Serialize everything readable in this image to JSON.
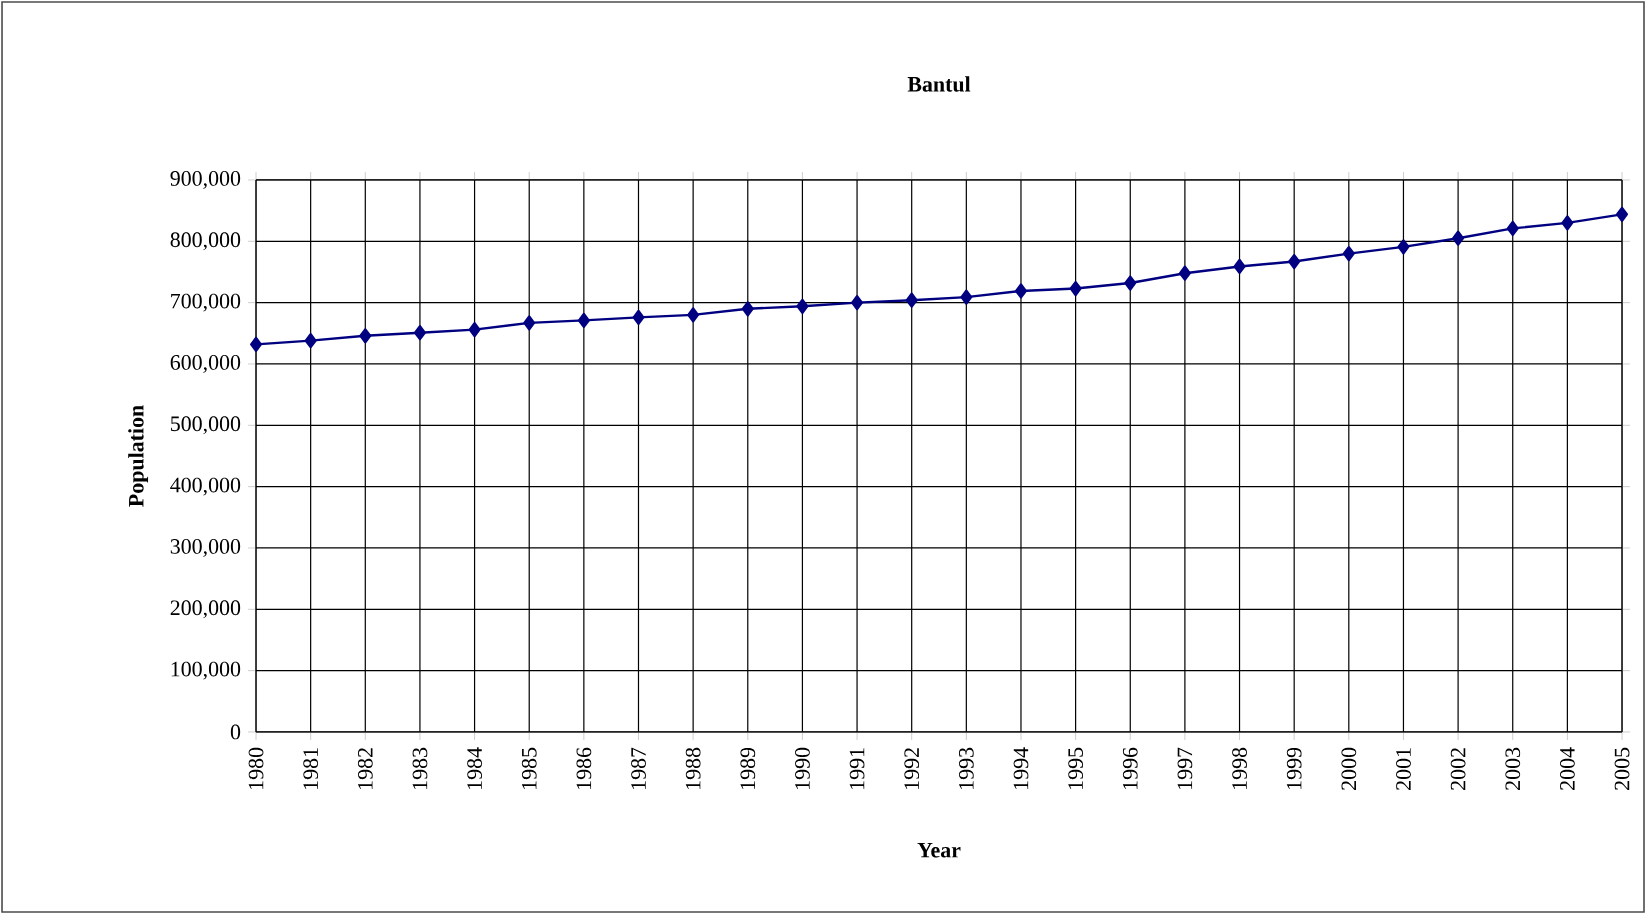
{
  "chart_data": {
    "type": "line",
    "title": "Bantul",
    "xlabel": "Year",
    "ylabel": "Population",
    "categories": [
      "1980",
      "1981",
      "1982",
      "1983",
      "1984",
      "1985",
      "1986",
      "1987",
      "1988",
      "1989",
      "1990",
      "1991",
      "1992",
      "1993",
      "1994",
      "1995",
      "1996",
      "1997",
      "1998",
      "1999",
      "2000",
      "2001",
      "2002",
      "2003",
      "2004",
      "2005"
    ],
    "series": [
      {
        "color": "#000080",
        "values": [
          632000,
          638000,
          646000,
          651000,
          656000,
          667000,
          671000,
          676000,
          680000,
          690000,
          694000,
          700000,
          704000,
          709000,
          719000,
          723000,
          732000,
          748000,
          759000,
          767000,
          780000,
          791000,
          805000,
          821000,
          830000,
          844000
        ]
      }
    ],
    "ylim": [
      0,
      900000
    ],
    "yticks": [
      0,
      {
        "value": 100000,
        "label": "100,000"
      },
      {
        "value": 200000,
        "label": "200,000"
      },
      {
        "value": 300000,
        "label": "300,000"
      },
      {
        "value": 400000,
        "label": "400,000"
      },
      {
        "value": 500000,
        "label": "500,000"
      },
      {
        "value": 600000,
        "label": "600,000"
      },
      {
        "value": 700000,
        "label": "700,000"
      },
      {
        "value": 800000,
        "label": "800,000"
      },
      {
        "value": 900000,
        "label": "900,000"
      }
    ],
    "grid": true,
    "marker": "diamond",
    "line_style": "solid"
  }
}
